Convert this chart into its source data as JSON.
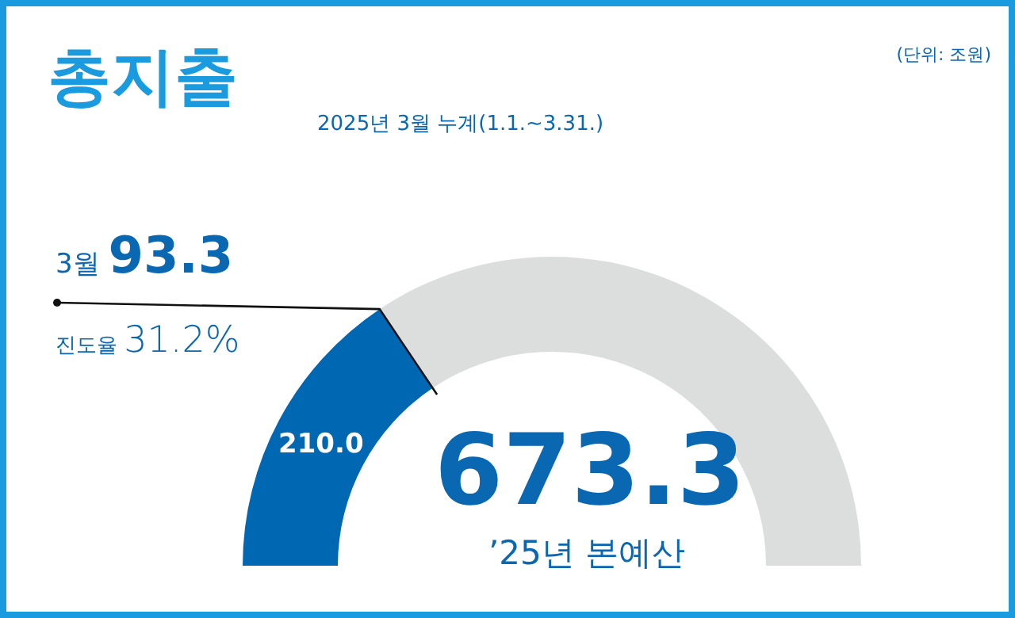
{
  "chart_data": {
    "type": "donut",
    "title": "총지출",
    "subtitle": "2025년 3월 누계(1.1.~3.31.)",
    "categories": [
      null,
      null
    ],
    "values": [
      210.0,
      463.3
    ],
    "colors": [
      "#0068b3",
      "#dcdddd"
    ],
    "value_labels": [
      "210.0",
      null
    ],
    "annotations": [
      "(단위: 조원)",
      "3월 93.3",
      "진도율 31.2%",
      "673.3",
      "’25년 본예산"
    ]
  }
}
